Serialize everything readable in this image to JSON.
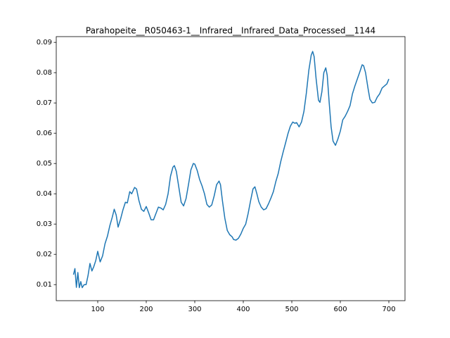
{
  "chart_data": {
    "type": "line",
    "title": "Parahopeite__R050463-1__Infrared__Infrared_Data_Processed__1144",
    "x": [
      50,
      53,
      56,
      59,
      62,
      65,
      68,
      72,
      76,
      80,
      84,
      88,
      92,
      96,
      100,
      105,
      110,
      115,
      120,
      125,
      130,
      134,
      138,
      142,
      147,
      152,
      157,
      161,
      166,
      170,
      176,
      180,
      185,
      190,
      195,
      200,
      205,
      210,
      215,
      220,
      225,
      230,
      235,
      240,
      245,
      250,
      255,
      258,
      262,
      267,
      272,
      277,
      282,
      287,
      292,
      297,
      300,
      305,
      310,
      315,
      320,
      325,
      330,
      335,
      340,
      345,
      350,
      353,
      357,
      362,
      367,
      372,
      377,
      380,
      385,
      390,
      395,
      400,
      405,
      410,
      415,
      420,
      424,
      428,
      432,
      437,
      442,
      447,
      452,
      457,
      462,
      467,
      472,
      477,
      482,
      487,
      492,
      497,
      502,
      506,
      510,
      515,
      520,
      525,
      530,
      535,
      540,
      543,
      546,
      550,
      555,
      558,
      562,
      566,
      570,
      573,
      577,
      581,
      585,
      590,
      595,
      600,
      605,
      610,
      615,
      620,
      625,
      630,
      635,
      640,
      645,
      648,
      652,
      657,
      661,
      666,
      671,
      676,
      681,
      686,
      691,
      696,
      700
    ],
    "series": [
      {
        "name": "Parahopeite",
        "color": "#1f77b4",
        "values": [
          0.0133,
          0.0153,
          0.0091,
          0.014,
          0.009,
          0.011,
          0.009,
          0.01,
          0.01,
          0.013,
          0.017,
          0.0145,
          0.016,
          0.018,
          0.021,
          0.0175,
          0.0195,
          0.0235,
          0.026,
          0.0295,
          0.0323,
          0.0349,
          0.033,
          0.029,
          0.0316,
          0.0347,
          0.0372,
          0.037,
          0.0407,
          0.04,
          0.0421,
          0.0416,
          0.0377,
          0.0349,
          0.0342,
          0.0358,
          0.0337,
          0.0314,
          0.0314,
          0.0335,
          0.0356,
          0.0353,
          0.0347,
          0.0365,
          0.04,
          0.0458,
          0.0488,
          0.0493,
          0.0474,
          0.0423,
          0.0372,
          0.036,
          0.0384,
          0.043,
          0.0479,
          0.05,
          0.0498,
          0.0477,
          0.0447,
          0.0426,
          0.04,
          0.0365,
          0.0356,
          0.0363,
          0.0393,
          0.043,
          0.0442,
          0.043,
          0.0377,
          0.0319,
          0.0279,
          0.0265,
          0.0258,
          0.0249,
          0.0247,
          0.0253,
          0.0267,
          0.0286,
          0.03,
          0.0335,
          0.0377,
          0.0416,
          0.0423,
          0.04,
          0.0374,
          0.0356,
          0.0347,
          0.0351,
          0.0367,
          0.0386,
          0.0407,
          0.044,
          0.0467,
          0.0505,
          0.0537,
          0.0567,
          0.0598,
          0.0623,
          0.0637,
          0.0633,
          0.0635,
          0.0621,
          0.0637,
          0.0672,
          0.0733,
          0.0807,
          0.0858,
          0.087,
          0.0853,
          0.0781,
          0.0709,
          0.0702,
          0.0737,
          0.08,
          0.0816,
          0.0791,
          0.0702,
          0.0621,
          0.0574,
          0.056,
          0.0581,
          0.0607,
          0.0644,
          0.0656,
          0.0672,
          0.0691,
          0.073,
          0.0756,
          0.0779,
          0.0802,
          0.0826,
          0.0823,
          0.08,
          0.0749,
          0.0712,
          0.07,
          0.0702,
          0.0719,
          0.073,
          0.0749,
          0.0756,
          0.0763,
          0.0779
        ]
      }
    ],
    "xlim": [
      14.5,
      733.3
    ],
    "ylim": [
      0.0047,
      0.0919
    ],
    "xticks": [
      100,
      200,
      300,
      400,
      500,
      600,
      700
    ],
    "yticks": [
      0.01,
      0.02,
      0.03,
      0.04,
      0.05,
      0.06,
      0.07,
      0.08,
      0.09
    ]
  }
}
